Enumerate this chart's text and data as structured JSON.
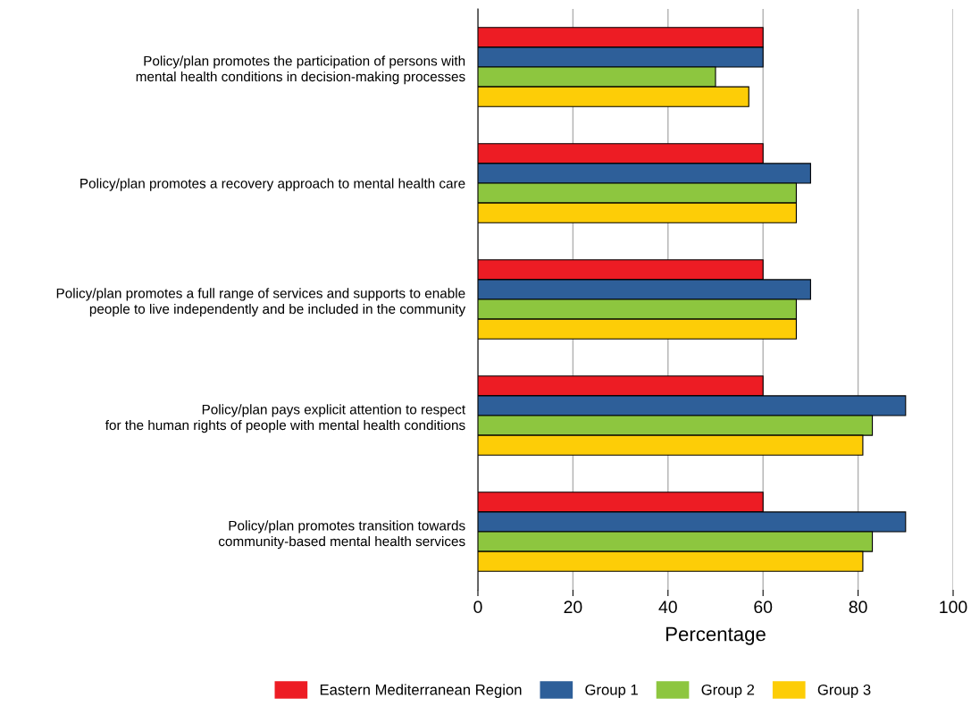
{
  "chart_data": {
    "type": "bar",
    "orientation": "horizontal",
    "xlabel": "Percentage",
    "categories": [
      "Policy/plan promotes the participation of persons with\nmental health conditions in decision-making processes",
      "Policy/plan promotes a recovery approach to mental health care",
      "Policy/plan promotes a full range of services and supports to enable\npeople to live independently and be included in the community",
      "Policy/plan pays explicit attention to respect\nfor the human rights of people with mental health conditions",
      "Policy/plan promotes transition towards\ncommunity-based mental health services"
    ],
    "series": [
      {
        "name": "Eastern Mediterranean Region",
        "color": "#ed1c24",
        "values": [
          60,
          60,
          60,
          60,
          60
        ]
      },
      {
        "name": "Group 1",
        "color": "#2e5f99",
        "values": [
          60,
          70,
          70,
          90,
          90
        ]
      },
      {
        "name": "Group 2",
        "color": "#8dc63f",
        "values": [
          50,
          67,
          67,
          83,
          83
        ]
      },
      {
        "name": "Group 3",
        "color": "#fdcd07",
        "values": [
          57,
          67,
          67,
          81,
          81
        ]
      }
    ],
    "xlim": [
      0,
      100
    ],
    "xticks": [
      0,
      20,
      40,
      60,
      80,
      100
    ],
    "grid": "x",
    "legend": "bottom"
  }
}
